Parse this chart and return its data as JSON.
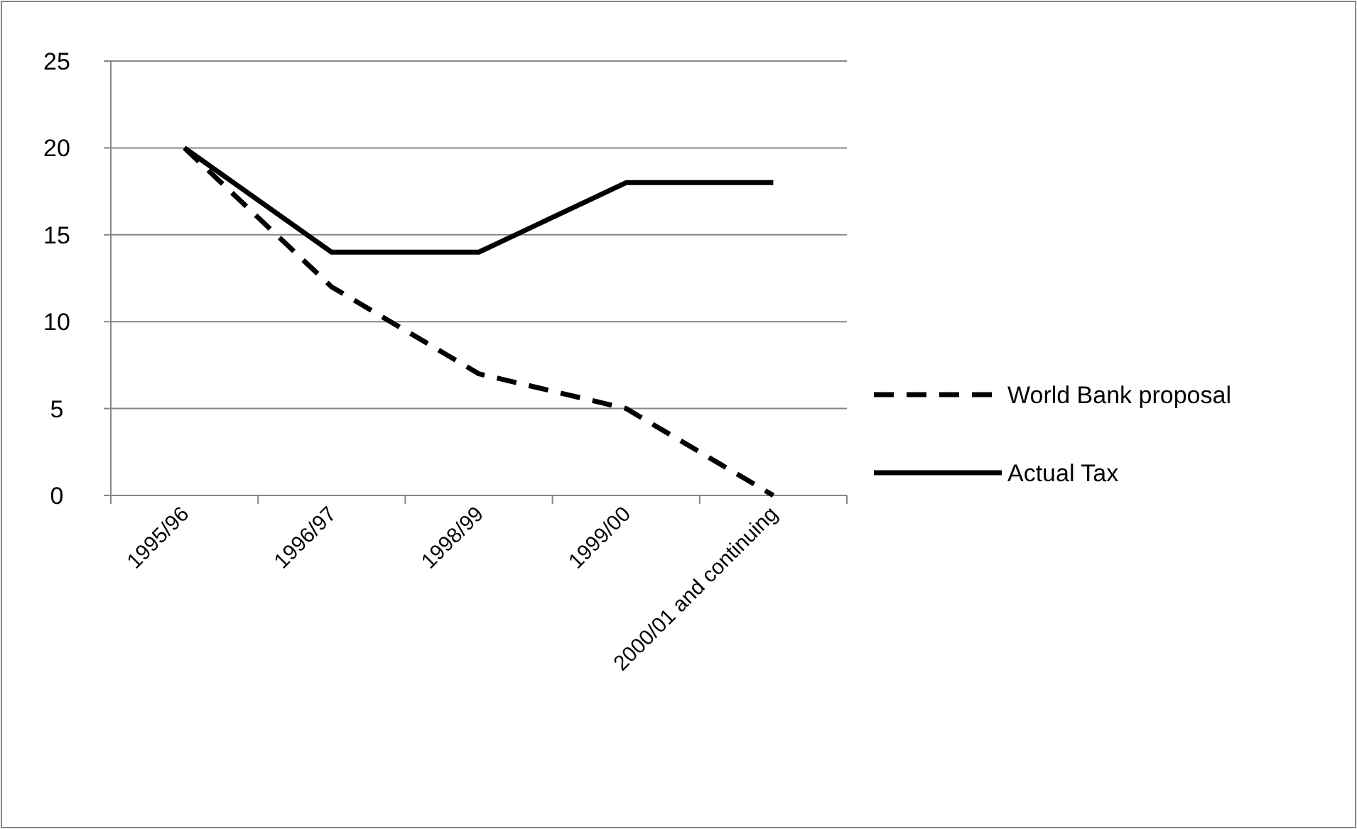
{
  "chart_data": {
    "type": "line",
    "categories": [
      "1995/96",
      "1996/97",
      "1998/99",
      "1999/00",
      "2000/01 and continuing"
    ],
    "series": [
      {
        "name": "World Bank proposal",
        "color": "#000000",
        "line_style": "dashed",
        "values": [
          20,
          12,
          7,
          5,
          0
        ]
      },
      {
        "name": "Actual Tax",
        "color": "#000000",
        "line_style": "solid",
        "values": [
          20,
          14,
          14,
          18,
          18
        ]
      }
    ],
    "ylim": [
      0,
      25
    ],
    "yticks": [
      0,
      5,
      10,
      15,
      20,
      25
    ],
    "grid": "y",
    "legend": "right",
    "marker": "none"
  }
}
